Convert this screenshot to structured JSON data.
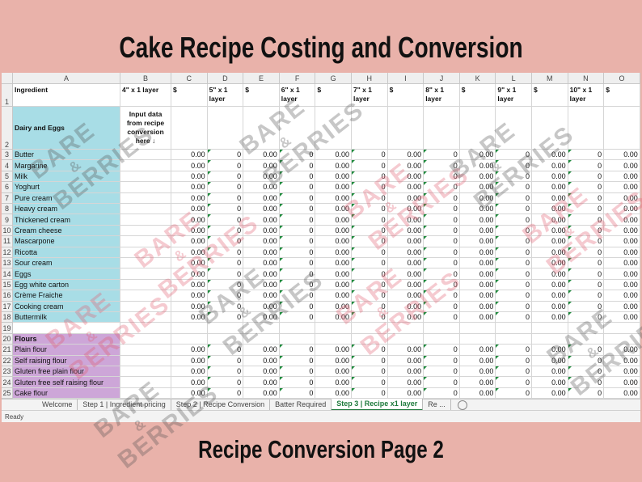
{
  "title": "Cake Recipe Costing and Conversion",
  "footer": "Recipe Conversion Page 2",
  "watermark": [
    "BARE",
    "&",
    "BERRIES"
  ],
  "sheet": {
    "columns": [
      "A",
      "B",
      "C",
      "D",
      "E",
      "F",
      "G",
      "H",
      "I",
      "J",
      "K",
      "L",
      "M",
      "N",
      "O"
    ],
    "header_row": {
      "num": "1",
      "cells": [
        "Ingredient",
        "4\" x 1 layer",
        "$",
        "5\" x 1 layer",
        "$",
        "6\" x 1 layer",
        "$",
        "7\" x 1 layer",
        "$",
        "8\" x 1 layer",
        "$",
        "9\" x 1 layer",
        "$",
        "10\" x 1 layer",
        "$"
      ]
    },
    "section_row": {
      "num": "2",
      "fill": "#a8dde6",
      "cells": [
        "Dairy and Eggs",
        "Input data from recipe conversion here ↓"
      ]
    },
    "rows": [
      {
        "num": "3",
        "label": "Butter",
        "fill": "#a8dde6",
        "cells": [
          "0.00",
          "0",
          "0.00",
          "0",
          "0.00",
          "0",
          "0.00",
          "0",
          "0.00",
          "0",
          "0.00",
          "0",
          "0.00"
        ]
      },
      {
        "num": "4",
        "label": "Margarine",
        "fill": "#a8dde6",
        "cells": [
          "0.00",
          "0",
          "0.00",
          "0",
          "0.00",
          "0",
          "0.00",
          "0",
          "0.00",
          "0",
          "0.00",
          "0",
          "0.00"
        ]
      },
      {
        "num": "5",
        "label": "Milk",
        "fill": "#a8dde6",
        "cells": [
          "0.00",
          "0",
          "0.00",
          "0",
          "0.00",
          "0",
          "0.00",
          "0",
          "0.00",
          "0",
          "0.00",
          "0",
          "0.00"
        ]
      },
      {
        "num": "6",
        "label": "Yoghurt",
        "fill": "#a8dde6",
        "cells": [
          "0.00",
          "0",
          "0.00",
          "0",
          "0.00",
          "0",
          "0.00",
          "0",
          "0.00",
          "0",
          "0.00",
          "0",
          "0.00"
        ]
      },
      {
        "num": "7",
        "label": "Pure cream",
        "fill": "#a8dde6",
        "cells": [
          "0.00",
          "0",
          "0.00",
          "0",
          "0.00",
          "0",
          "0.00",
          "0",
          "0.00",
          "0",
          "0.00",
          "0",
          "0.00"
        ]
      },
      {
        "num": "8",
        "label": "Heavy cream",
        "fill": "#a8dde6",
        "cells": [
          "0.00",
          "0",
          "0.00",
          "0",
          "0.00",
          "0",
          "0.00",
          "0",
          "0.00",
          "0",
          "0.00",
          "0",
          "0.00"
        ]
      },
      {
        "num": "9",
        "label": "Thickened cream",
        "fill": "#a8dde6",
        "cells": [
          "0.00",
          "0",
          "0.00",
          "0",
          "0.00",
          "0",
          "0.00",
          "0",
          "0.00",
          "0",
          "0.00",
          "0",
          "0.00"
        ]
      },
      {
        "num": "10",
        "label": "Cream cheese",
        "fill": "#a8dde6",
        "cells": [
          "0.00",
          "0",
          "0.00",
          "0",
          "0.00",
          "0",
          "0.00",
          "0",
          "0.00",
          "0",
          "0.00",
          "0",
          "0.00"
        ]
      },
      {
        "num": "11",
        "label": "Mascarpone",
        "fill": "#a8dde6",
        "cells": [
          "0.00",
          "0",
          "0.00",
          "0",
          "0.00",
          "0",
          "0.00",
          "0",
          "0.00",
          "0",
          "0.00",
          "0",
          "0.00"
        ]
      },
      {
        "num": "12",
        "label": "Ricotta",
        "fill": "#a8dde6",
        "cells": [
          "0.00",
          "0",
          "0.00",
          "0",
          "0.00",
          "0",
          "0.00",
          "0",
          "0.00",
          "0",
          "0.00",
          "0",
          "0.00"
        ]
      },
      {
        "num": "13",
        "label": "Sour cream",
        "fill": "#a8dde6",
        "cells": [
          "0.00",
          "0",
          "0.00",
          "0",
          "0.00",
          "0",
          "0.00",
          "0",
          "0.00",
          "0",
          "0.00",
          "0",
          "0.00"
        ]
      },
      {
        "num": "14",
        "label": "Eggs",
        "fill": "#a8dde6",
        "cells": [
          "0.00",
          "0",
          "0.00",
          "0",
          "0.00",
          "0",
          "0.00",
          "0",
          "0.00",
          "0",
          "0.00",
          "0",
          "0.00"
        ]
      },
      {
        "num": "15",
        "label": "Egg white carton",
        "fill": "#a8dde6",
        "cells": [
          "0.00",
          "0",
          "0.00",
          "0",
          "0.00",
          "0",
          "0.00",
          "0",
          "0.00",
          "0",
          "0.00",
          "0",
          "0.00"
        ]
      },
      {
        "num": "16",
        "label": "Crème Fraiche",
        "fill": "#a8dde6",
        "cells": [
          "0.00",
          "0",
          "0.00",
          "0",
          "0.00",
          "0",
          "0.00",
          "0",
          "0.00",
          "0",
          "0.00",
          "0",
          "0.00"
        ]
      },
      {
        "num": "17",
        "label": "Cooking cream",
        "fill": "#a8dde6",
        "cells": [
          "0.00",
          "0",
          "0.00",
          "0",
          "0.00",
          "0",
          "0.00",
          "0",
          "0.00",
          "0",
          "0.00",
          "0",
          "0.00"
        ]
      },
      {
        "num": "18",
        "label": "Buttermilk",
        "fill": "#a8dde6",
        "cells": [
          "0.00",
          "0",
          "0.00",
          "0",
          "0.00",
          "0",
          "0.00",
          "0",
          "0.00",
          "0",
          "0.00",
          "0",
          "0.00"
        ]
      },
      {
        "num": "19"
      },
      {
        "num": "20",
        "label": "Flours",
        "fill": "#cda6d8"
      },
      {
        "num": "21",
        "label": "Plain flour",
        "fill": "#cda6d8",
        "cells": [
          "0.00",
          "0",
          "0.00",
          "0",
          "0.00",
          "0",
          "0.00",
          "0",
          "0.00",
          "0",
          "0.00",
          "0",
          "0.00"
        ]
      },
      {
        "num": "22",
        "label": "Self raising flour",
        "fill": "#cda6d8",
        "cells": [
          "0.00",
          "0",
          "0.00",
          "0",
          "0.00",
          "0",
          "0.00",
          "0",
          "0.00",
          "0",
          "0.00",
          "0",
          "0.00"
        ]
      },
      {
        "num": "23",
        "label": "Gluten free plain flour",
        "fill": "#cda6d8",
        "cells": [
          "0.00",
          "0",
          "0.00",
          "0",
          "0.00",
          "0",
          "0.00",
          "0",
          "0.00",
          "0",
          "0.00",
          "0",
          "0.00"
        ]
      },
      {
        "num": "24",
        "label": "Gluten free self raising flour",
        "fill": "#cda6d8",
        "cells": [
          "0.00",
          "0",
          "0.00",
          "0",
          "0.00",
          "0",
          "0.00",
          "0",
          "0.00",
          "0",
          "0.00",
          "0",
          "0.00"
        ]
      },
      {
        "num": "25",
        "label": "Cake flour",
        "fill": "#cda6d8",
        "cells": [
          "0.00",
          "0",
          "0.00",
          "0",
          "0.00",
          "0",
          "0.00",
          "0",
          "0.00",
          "0",
          "0.00",
          "0",
          "0.00"
        ]
      }
    ]
  },
  "tabs": [
    "Welcome",
    "Step 1 | Ingredient pricing",
    "Step 2 | Recipe Conversion",
    "Batter Required",
    "Step 3 | Recipe x1 layer",
    "Re ..."
  ],
  "active_tab": 4,
  "status": "Ready"
}
